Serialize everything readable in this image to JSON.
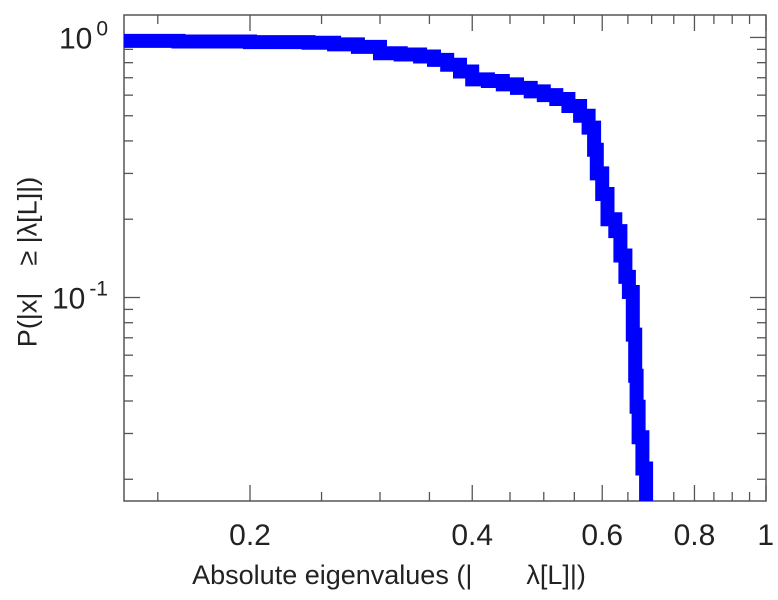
{
  "chart_data": {
    "type": "line",
    "title": "",
    "xlabel": "Absolute eigenvalues (|  λ[L]|)",
    "ylabel": "P(|x| ≥ |λ[L]|)",
    "xscale": "log",
    "yscale": "log",
    "xlim": [
      0.135,
      1.0
    ],
    "ylim": [
      0.0165,
      1.22
    ],
    "grid": false,
    "legend": "none",
    "x_ticks": [
      {
        "value": 0.2,
        "label": "0.2"
      },
      {
        "value": 0.4,
        "label": "0.4"
      },
      {
        "value": 0.6,
        "label": "0.6"
      },
      {
        "value": 0.8,
        "label": "0.8"
      },
      {
        "value": 1.0,
        "label": "1"
      }
    ],
    "y_ticks": [
      {
        "value": 1.0,
        "base": "10",
        "exp": "0"
      },
      {
        "value": 0.1,
        "base": "10",
        "exp": "-1"
      }
    ],
    "series": [
      {
        "color": "#0000ff",
        "step": true,
        "points": [
          [
            0.135,
            0.97
          ],
          [
            0.16,
            0.965
          ],
          [
            0.2,
            0.96
          ],
          [
            0.24,
            0.955
          ],
          [
            0.26,
            0.94
          ],
          [
            0.28,
            0.92
          ],
          [
            0.3,
            0.87
          ],
          [
            0.32,
            0.86
          ],
          [
            0.34,
            0.845
          ],
          [
            0.355,
            0.82
          ],
          [
            0.37,
            0.785
          ],
          [
            0.385,
            0.74
          ],
          [
            0.4,
            0.69
          ],
          [
            0.42,
            0.68
          ],
          [
            0.44,
            0.66
          ],
          [
            0.46,
            0.64
          ],
          [
            0.48,
            0.62
          ],
          [
            0.5,
            0.6
          ],
          [
            0.52,
            0.58
          ],
          [
            0.54,
            0.545
          ],
          [
            0.56,
            0.5
          ],
          [
            0.575,
            0.45
          ],
          [
            0.585,
            0.37
          ],
          [
            0.59,
            0.3
          ],
          [
            0.6,
            0.25
          ],
          [
            0.61,
            0.2
          ],
          [
            0.625,
            0.18
          ],
          [
            0.635,
            0.145
          ],
          [
            0.645,
            0.12
          ],
          [
            0.652,
            0.105
          ],
          [
            0.66,
            0.072
          ],
          [
            0.665,
            0.05
          ],
          [
            0.668,
            0.038
          ],
          [
            0.672,
            0.029
          ],
          [
            0.68,
            0.022
          ],
          [
            0.688,
            0.0165
          ]
        ]
      }
    ]
  }
}
